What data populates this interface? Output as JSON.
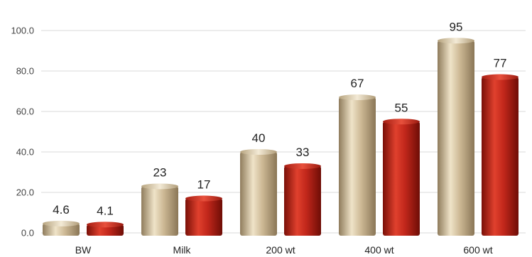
{
  "chart_data": {
    "type": "bar",
    "categories": [
      "BW",
      "Milk",
      "200 wt",
      "400 wt",
      "600 wt"
    ],
    "series": [
      {
        "values": [
          4.6,
          23,
          40,
          67,
          95
        ],
        "label_text": [
          "4.6",
          "23",
          "40",
          "67",
          "95"
        ],
        "color": "#c9b48f"
      },
      {
        "values": [
          4.1,
          17,
          33,
          55,
          77
        ],
        "label_text": [
          "4.1",
          "17",
          "33",
          "55",
          "77"
        ],
        "color": "#c1271b"
      }
    ],
    "ylim": [
      0,
      100
    ],
    "yticks": [
      "0.0",
      "20.0",
      "40.0",
      "60.0",
      "80.0",
      "100.0"
    ],
    "grid": true,
    "legend": "none"
  }
}
